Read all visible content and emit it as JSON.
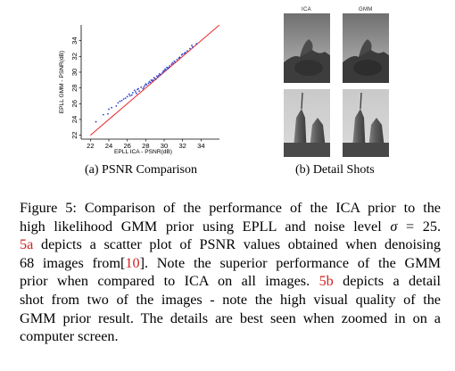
{
  "chart_data": {
    "type": "scatter",
    "xlabel": "EPLL ICA - PSNR(dB)",
    "ylabel": "EPLL GMM - PSNR(dB)",
    "xlim": [
      21,
      36
    ],
    "ylim": [
      21.5,
      36
    ],
    "x_ticks": [
      "22",
      "24",
      "26",
      "28",
      "30",
      "32",
      "34"
    ],
    "y_ticks": [
      "22",
      "24",
      "26",
      "28",
      "30",
      "32",
      "34"
    ],
    "diagonal": {
      "from": [
        22,
        22
      ],
      "to": [
        36,
        36
      ],
      "color": "#e8262a"
    },
    "marker_color": "#3344cc",
    "series": [
      {
        "points": [
          [
            22.6,
            23.7
          ],
          [
            23.4,
            24.6
          ],
          [
            23.9,
            24.7
          ],
          [
            24.3,
            25.5
          ],
          [
            24.8,
            25.7
          ],
          [
            25.2,
            26.3
          ],
          [
            25.6,
            26.6
          ],
          [
            26.0,
            26.9
          ],
          [
            26.3,
            27.0
          ],
          [
            26.6,
            27.4
          ],
          [
            26.9,
            27.5
          ],
          [
            27.1,
            27.8
          ],
          [
            27.3,
            27.6
          ],
          [
            27.5,
            28.1
          ],
          [
            27.7,
            27.9
          ],
          [
            27.9,
            28.3
          ],
          [
            28.1,
            28.4
          ],
          [
            28.3,
            28.6
          ],
          [
            28.5,
            28.7
          ],
          [
            28.7,
            28.9
          ],
          [
            28.8,
            29.0
          ],
          [
            29.0,
            29.2
          ],
          [
            29.1,
            29.1
          ],
          [
            29.3,
            29.4
          ],
          [
            29.4,
            29.6
          ],
          [
            29.6,
            29.7
          ],
          [
            29.8,
            29.9
          ],
          [
            30.0,
            30.2
          ],
          [
            30.2,
            30.3
          ],
          [
            30.4,
            30.5
          ],
          [
            30.6,
            30.8
          ],
          [
            30.8,
            31.0
          ],
          [
            31.0,
            31.1
          ],
          [
            31.2,
            31.3
          ],
          [
            31.4,
            31.6
          ],
          [
            31.6,
            31.8
          ],
          [
            31.9,
            32.2
          ],
          [
            32.2,
            32.4
          ],
          [
            32.5,
            32.7
          ],
          [
            32.8,
            33.0
          ],
          [
            33.1,
            33.2
          ],
          [
            33.5,
            33.6
          ],
          [
            24.0,
            25.3
          ],
          [
            25.0,
            26.1
          ],
          [
            25.8,
            26.7
          ],
          [
            26.5,
            27.1
          ],
          [
            27.2,
            27.9
          ],
          [
            27.8,
            28.1
          ],
          [
            28.4,
            28.8
          ],
          [
            29.2,
            29.5
          ],
          [
            29.9,
            30.1
          ],
          [
            30.5,
            30.6
          ],
          [
            31.1,
            31.4
          ],
          [
            31.7,
            31.9
          ],
          [
            32.3,
            32.5
          ],
          [
            26.8,
            27.7
          ],
          [
            27.0,
            27.3
          ],
          [
            28.0,
            28.5
          ],
          [
            28.6,
            29.0
          ],
          [
            29.5,
            29.8
          ],
          [
            30.1,
            30.4
          ],
          [
            30.9,
            31.2
          ],
          [
            32.0,
            32.3
          ],
          [
            33.0,
            33.4
          ],
          [
            25.4,
            26.4
          ],
          [
            26.2,
            27.2
          ],
          [
            28.9,
            29.3
          ],
          [
            30.3,
            30.6
          ]
        ]
      }
    ]
  },
  "subfigures": [
    {
      "caption": "(a) PSNR Comparison"
    },
    {
      "caption": "(b) Detail Shots",
      "column_labels": [
        "ICA",
        "GMM"
      ]
    }
  ],
  "caption": {
    "lines": [
      [
        {
          "t": "Figure 5: Comparison of the performance of the ICA prior to the"
        }
      ],
      [
        {
          "t": "high likelihood GMM prior using EPLL and noise level "
        },
        {
          "t": "σ",
          "i": true
        },
        {
          "t": " = 25."
        }
      ],
      [
        {
          "t": "5a",
          "ref": true
        },
        {
          "t": " depicts a scatter plot of PSNR values obtained when denoising"
        }
      ],
      [
        {
          "t": "68 images from["
        },
        {
          "t": "10",
          "ref": true
        },
        {
          "t": "]. Note the superior performance of the GMM"
        }
      ],
      [
        {
          "t": "prior when compared to ICA on all images. "
        },
        {
          "t": "5b",
          "ref": true
        },
        {
          "t": " depicts a detail"
        }
      ],
      [
        {
          "t": "shot from two of the images - note the high visual quality of the"
        }
      ],
      [
        {
          "t": "GMM prior result. The details are best seen when zoomed in on a"
        }
      ],
      [
        {
          "t": "computer screen."
        }
      ]
    ]
  }
}
